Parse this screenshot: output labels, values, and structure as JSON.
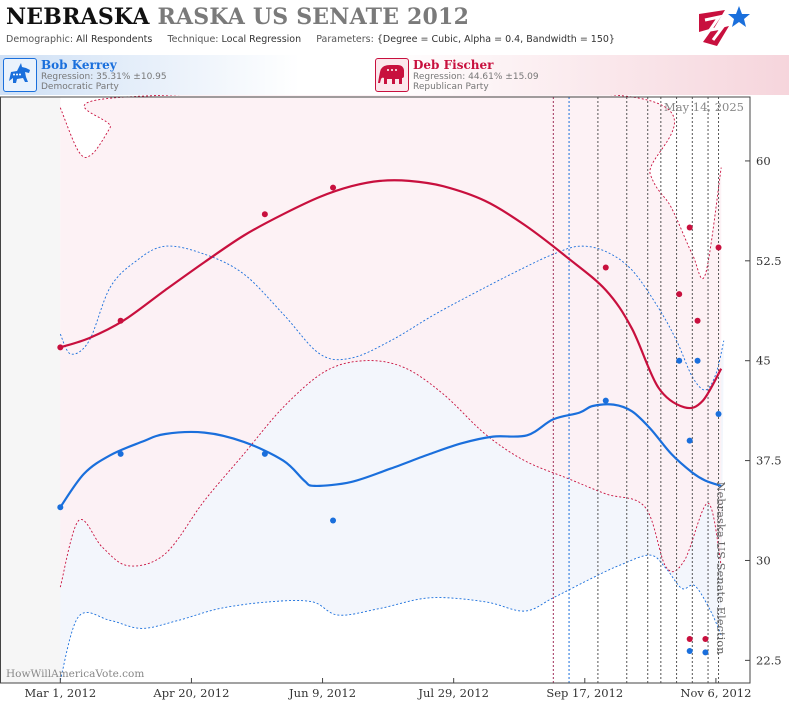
{
  "header": {
    "title_main": "NEBRASKA",
    "title_sub": "RASKA US SENATE 2012",
    "demographic_label": "Demographic:",
    "demographic_value": "All Respondents",
    "technique_label": "Technique:",
    "technique_value": "Local Regression",
    "parameters_label": "Parameters:",
    "parameters_value": "{Degree = Cubic, Alpha = 0.4, Bandwidth = 150}"
  },
  "candidates": [
    {
      "name": "Bob Kerrey",
      "regression": "Regression: 35.31% ±10.95",
      "party": "Democratic Party",
      "color": "#1a6fdc",
      "icon": "donkey-icon"
    },
    {
      "name": "Deb Fischer",
      "regression": "Regression: 44.61% ±15.09",
      "party": "Republican Party",
      "color": "#c8103e",
      "icon": "elephant-icon"
    }
  ],
  "watermark": "HowWillAmericaVote.com",
  "date_stamp": "May 14, 2025",
  "chart_data": {
    "type": "line",
    "title": "Nebraska US Senate Election",
    "x_tick_labels": [
      "Mar 1, 2012",
      "Apr 20, 2012",
      "Jun 9, 2012",
      "Jul 29, 2012",
      "Sep 17, 2012",
      "Nov 6, 2012"
    ],
    "x_tick_dates": [
      "2012-03-01",
      "2012-04-20",
      "2012-06-09",
      "2012-07-29",
      "2012-09-17",
      "2012-11-06"
    ],
    "xlim": [
      "2012-02-07",
      "2012-11-19"
    ],
    "y_ticks": [
      22.5,
      30,
      37.5,
      45,
      52.5,
      60
    ],
    "ylim": [
      20.8,
      64.8
    ],
    "grid": false,
    "event_lines": [
      {
        "date": "2012-09-05",
        "color": "#a0305a"
      },
      {
        "date": "2012-09-11",
        "color": "#1a6fdc"
      },
      {
        "date": "2012-09-22",
        "color": "#555555"
      },
      {
        "date": "2012-10-03",
        "color": "#555555"
      },
      {
        "date": "2012-10-11",
        "color": "#555555"
      },
      {
        "date": "2012-10-16",
        "color": "#555555"
      },
      {
        "date": "2012-10-22",
        "color": "#555555"
      },
      {
        "date": "2012-10-28",
        "color": "#555555"
      },
      {
        "date": "2012-11-03",
        "color": "#555555"
      },
      {
        "date": "2012-11-07",
        "color": "#555555"
      }
    ],
    "series": [
      {
        "name": "Bob Kerrey",
        "color": "#1a6fdc",
        "band_fill": "#f1f5fb",
        "points": [
          [
            "2012-03-01",
            34.0
          ],
          [
            "2012-03-24",
            38.0
          ],
          [
            "2012-05-18",
            38.0
          ],
          [
            "2012-06-13",
            33.0
          ],
          [
            "2012-09-25",
            42.0
          ],
          [
            "2012-10-23",
            45.0
          ],
          [
            "2012-10-27",
            39.0
          ],
          [
            "2012-10-30",
            45.0
          ],
          [
            "2012-11-07",
            41.0
          ],
          [
            "2012-10-27",
            23.2
          ],
          [
            "2012-11-02",
            23.1
          ]
        ],
        "fit": [
          [
            "2012-03-01",
            34.0
          ],
          [
            "2012-03-10",
            36.5
          ],
          [
            "2012-03-20",
            37.9
          ],
          [
            "2012-04-01",
            38.9
          ],
          [
            "2012-04-10",
            39.5
          ],
          [
            "2012-04-25",
            39.6
          ],
          [
            "2012-05-10",
            38.9
          ],
          [
            "2012-05-25",
            37.5
          ],
          [
            "2012-06-02",
            36.0
          ],
          [
            "2012-06-06",
            35.6
          ],
          [
            "2012-06-20",
            35.9
          ],
          [
            "2012-07-05",
            36.9
          ],
          [
            "2012-07-20",
            38.0
          ],
          [
            "2012-08-01",
            38.8
          ],
          [
            "2012-08-13",
            39.3
          ],
          [
            "2012-08-26",
            39.4
          ],
          [
            "2012-09-05",
            40.6
          ],
          [
            "2012-09-15",
            41.1
          ],
          [
            "2012-09-20",
            41.6
          ],
          [
            "2012-09-28",
            41.7
          ],
          [
            "2012-10-05",
            41.2
          ],
          [
            "2012-10-12",
            39.9
          ],
          [
            "2012-10-20",
            38.0
          ],
          [
            "2012-10-28",
            36.6
          ],
          [
            "2012-11-02",
            36.0
          ],
          [
            "2012-11-08",
            35.6
          ]
        ],
        "upper": [
          [
            "2012-03-01",
            47.0
          ],
          [
            "2012-03-05",
            45.5
          ],
          [
            "2012-03-12",
            46.5
          ],
          [
            "2012-03-20",
            50.5
          ],
          [
            "2012-03-30",
            52.5
          ],
          [
            "2012-04-10",
            53.6
          ],
          [
            "2012-04-25",
            53.0
          ],
          [
            "2012-05-10",
            51.5
          ],
          [
            "2012-05-25",
            48.5
          ],
          [
            "2012-06-08",
            45.5
          ],
          [
            "2012-06-20",
            45.2
          ],
          [
            "2012-07-05",
            46.5
          ],
          [
            "2012-07-22",
            48.5
          ],
          [
            "2012-08-10",
            50.5
          ],
          [
            "2012-08-25",
            52.0
          ],
          [
            "2012-09-05",
            53.0
          ],
          [
            "2012-09-15",
            53.6
          ],
          [
            "2012-09-25",
            53.2
          ],
          [
            "2012-10-05",
            51.8
          ],
          [
            "2012-10-15",
            49.0
          ],
          [
            "2012-10-22",
            46.5
          ],
          [
            "2012-10-28",
            43.8
          ],
          [
            "2012-11-02",
            42.8
          ],
          [
            "2012-11-06",
            44.0
          ],
          [
            "2012-11-09",
            46.5
          ]
        ],
        "lower": [
          [
            "2012-03-01",
            21.0
          ],
          [
            "2012-03-08",
            25.8
          ],
          [
            "2012-03-20",
            25.5
          ],
          [
            "2012-04-01",
            24.9
          ],
          [
            "2012-04-15",
            25.5
          ],
          [
            "2012-05-01",
            26.4
          ],
          [
            "2012-05-20",
            26.9
          ],
          [
            "2012-06-05",
            26.9
          ],
          [
            "2012-06-15",
            25.9
          ],
          [
            "2012-07-01",
            26.4
          ],
          [
            "2012-07-20",
            27.2
          ],
          [
            "2012-08-10",
            26.9
          ],
          [
            "2012-08-25",
            26.2
          ],
          [
            "2012-09-05",
            27.2
          ],
          [
            "2012-09-20",
            28.7
          ],
          [
            "2012-10-01",
            29.7
          ],
          [
            "2012-10-12",
            30.4
          ],
          [
            "2012-10-18",
            29.4
          ],
          [
            "2012-10-24",
            27.9
          ],
          [
            "2012-10-29",
            28.1
          ],
          [
            "2012-11-04",
            26.2
          ],
          [
            "2012-11-08",
            24.4
          ]
        ]
      },
      {
        "name": "Deb Fischer",
        "color": "#c8103e",
        "band_fill": "#fdf0f3",
        "points": [
          [
            "2012-03-01",
            46.0
          ],
          [
            "2012-03-24",
            48.0
          ],
          [
            "2012-05-18",
            56.0
          ],
          [
            "2012-06-13",
            58.0
          ],
          [
            "2012-09-25",
            52.0
          ],
          [
            "2012-10-23",
            50.0
          ],
          [
            "2012-10-27",
            55.0
          ],
          [
            "2012-10-30",
            48.0
          ],
          [
            "2012-11-07",
            53.5
          ],
          [
            "2012-10-27",
            24.1
          ],
          [
            "2012-11-02",
            24.1
          ]
        ],
        "fit": [
          [
            "2012-03-01",
            46.0
          ],
          [
            "2012-03-12",
            46.7
          ],
          [
            "2012-03-25",
            48.0
          ],
          [
            "2012-04-10",
            50.3
          ],
          [
            "2012-04-25",
            52.4
          ],
          [
            "2012-05-10",
            54.4
          ],
          [
            "2012-05-25",
            56.0
          ],
          [
            "2012-06-08",
            57.3
          ],
          [
            "2012-06-20",
            58.1
          ],
          [
            "2012-07-01",
            58.5
          ],
          [
            "2012-07-12",
            58.5
          ],
          [
            "2012-07-25",
            58.1
          ],
          [
            "2012-08-10",
            57.0
          ],
          [
            "2012-08-25",
            55.2
          ],
          [
            "2012-09-10",
            52.8
          ],
          [
            "2012-09-25",
            50.3
          ],
          [
            "2012-10-05",
            47.4
          ],
          [
            "2012-10-15",
            43.0
          ],
          [
            "2012-10-25",
            41.5
          ],
          [
            "2012-11-01",
            42.0
          ],
          [
            "2012-11-08",
            44.4
          ]
        ],
        "upper": [
          [
            "2012-03-01",
            64.0
          ],
          [
            "2012-03-08",
            60.7
          ],
          [
            "2012-03-13",
            60.5
          ],
          [
            "2012-03-20",
            62.5
          ],
          [
            "2012-03-26",
            64.8
          ],
          [
            "2012-10-05",
            64.8
          ],
          [
            "2012-10-12",
            59.0
          ],
          [
            "2012-10-20",
            56.5
          ],
          [
            "2012-10-28",
            53.0
          ],
          [
            "2012-11-02",
            51.5
          ],
          [
            "2012-11-08",
            59.5
          ]
        ],
        "lower": [
          [
            "2012-03-01",
            28.0
          ],
          [
            "2012-03-08",
            33.0
          ],
          [
            "2012-03-17",
            31.0
          ],
          [
            "2012-03-27",
            29.6
          ],
          [
            "2012-04-10",
            30.5
          ],
          [
            "2012-04-25",
            34.5
          ],
          [
            "2012-05-10",
            38.0
          ],
          [
            "2012-05-25",
            41.5
          ],
          [
            "2012-06-10",
            44.2
          ],
          [
            "2012-06-25",
            45.0
          ],
          [
            "2012-07-10",
            44.5
          ],
          [
            "2012-07-25",
            42.5
          ],
          [
            "2012-08-10",
            39.5
          ],
          [
            "2012-08-25",
            37.5
          ],
          [
            "2012-09-10",
            36.2
          ],
          [
            "2012-09-25",
            35.0
          ],
          [
            "2012-10-10",
            34.0
          ],
          [
            "2012-10-18",
            29.5
          ],
          [
            "2012-10-25",
            30.0
          ],
          [
            "2012-11-03",
            34.3
          ],
          [
            "2012-11-08",
            29.6
          ]
        ]
      }
    ],
    "colors": {
      "shade_left": "#f6f6f6",
      "shade_right": "#f0f0f0",
      "axis": "#444444"
    }
  }
}
